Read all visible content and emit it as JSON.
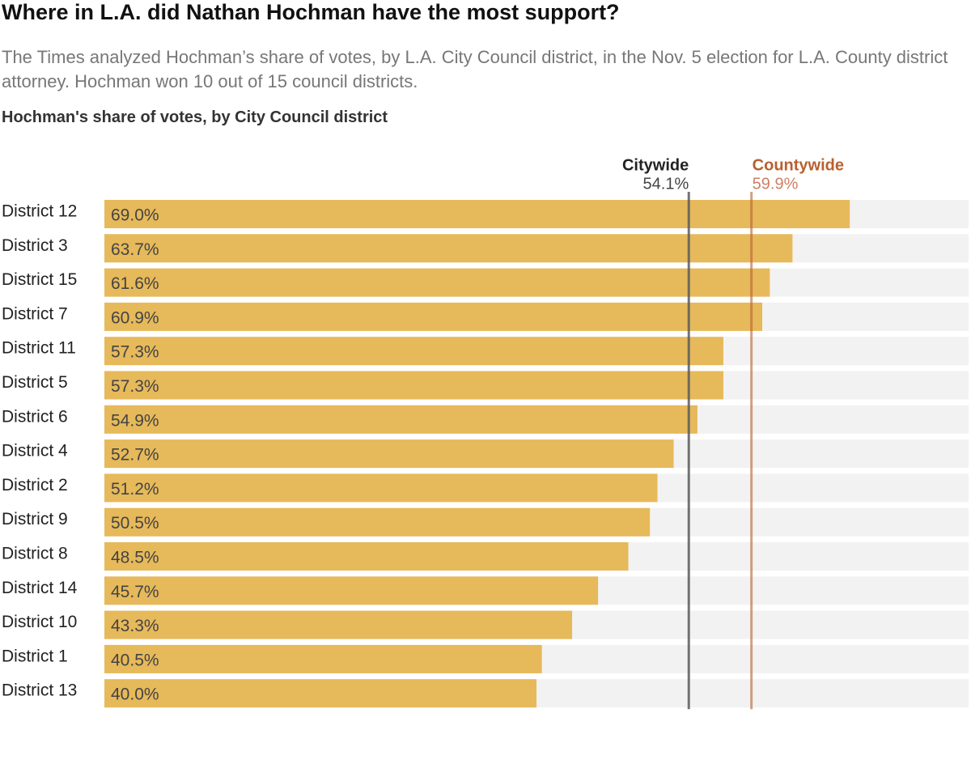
{
  "chart_data": {
    "type": "bar",
    "title": "Where in L.A. did Nathan Hochman have the most support?",
    "subtitle": "The Times analyzed Hochman’s share of votes, by L.A. City Council district, in the Nov. 5 election for L.A. County district attorney. Hochman won 10 out of 15 council districts.",
    "chart_label": "Hochman's share of votes, by City Council district",
    "categories": [
      "District 12",
      "District 3",
      "District 15",
      "District 7",
      "District 11",
      "District 5",
      "District 6",
      "District 4",
      "District 2",
      "District 9",
      "District 8",
      "District 14",
      "District 10",
      "District 1",
      "District 13"
    ],
    "values": [
      69.0,
      63.7,
      61.6,
      60.9,
      57.3,
      57.3,
      54.9,
      52.7,
      51.2,
      50.5,
      48.5,
      45.7,
      43.3,
      40.5,
      40.0
    ],
    "value_labels": [
      "69.0%",
      "63.7%",
      "61.6%",
      "60.9%",
      "57.3%",
      "57.3%",
      "54.9%",
      "52.7%",
      "51.2%",
      "50.5%",
      "48.5%",
      "45.7%",
      "43.3%",
      "40.5%",
      "40.0%"
    ],
    "color": "#e6b95a",
    "xlim": [
      0,
      80
    ],
    "reference_lines": [
      {
        "name": "Citywide",
        "value": 54.1,
        "label": "54.1%",
        "color": "#5a5a5a"
      },
      {
        "name": "Countywide",
        "value": 59.9,
        "label": "59.9%",
        "color": "#b8602f"
      }
    ]
  }
}
